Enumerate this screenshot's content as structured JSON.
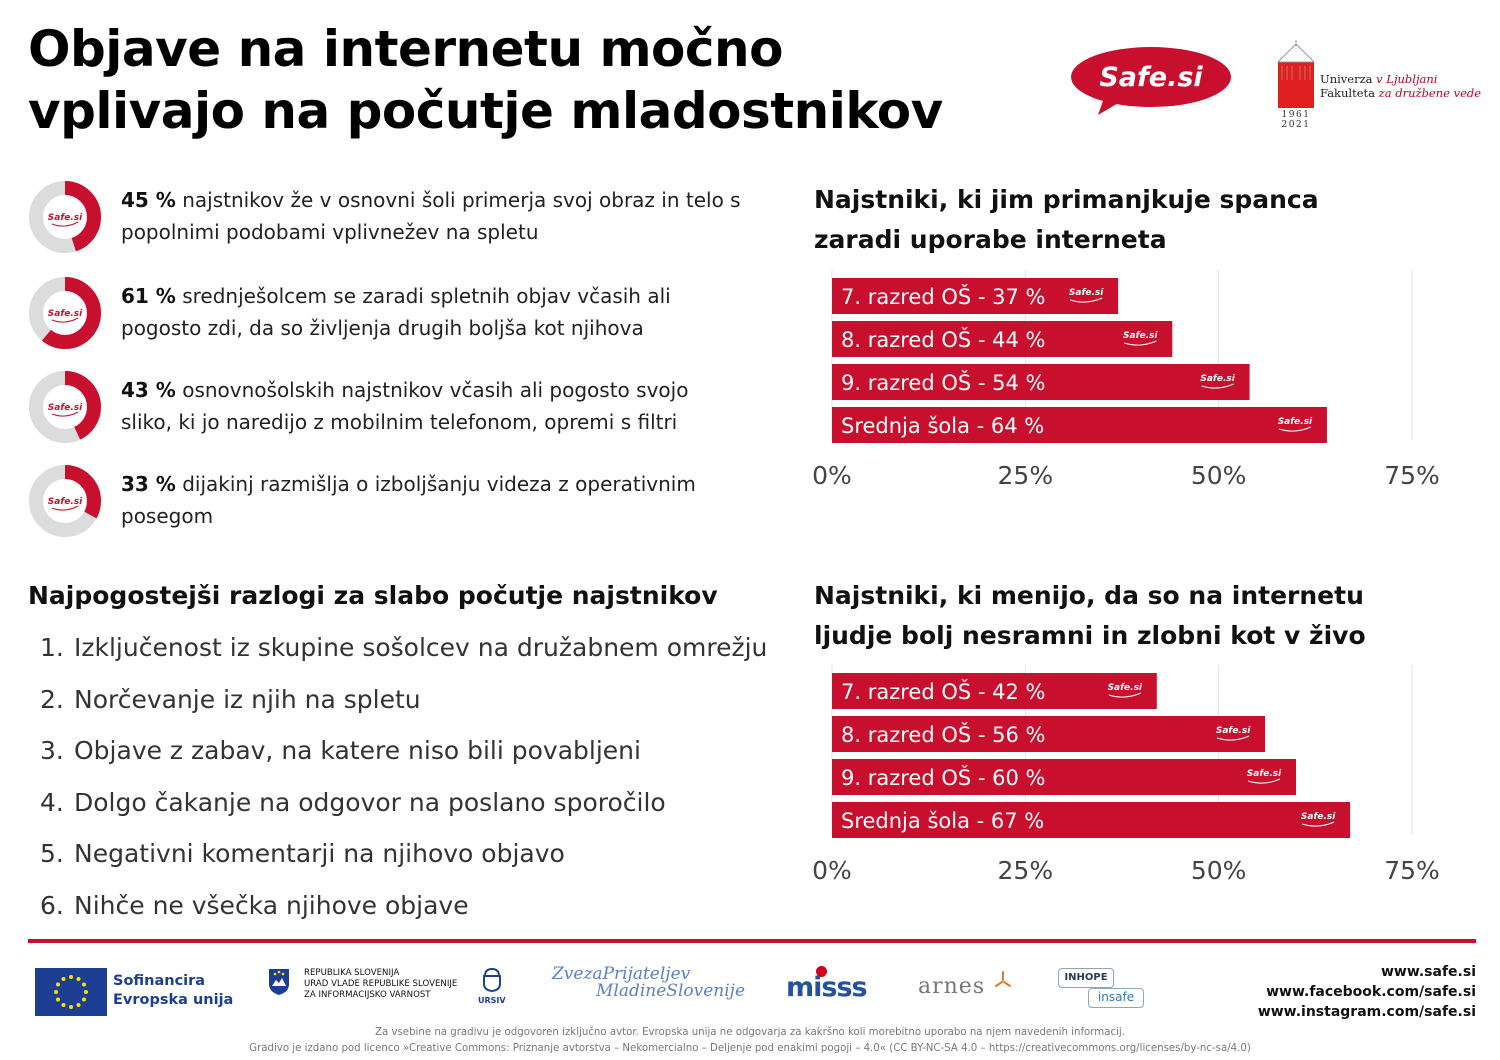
{
  "title": {
    "line1": "Objave na internetu močno",
    "line2": "vplivajo na počutje mladostnikov"
  },
  "logos": {
    "safe": "Safe.si",
    "uni_line1": "Univerza",
    "uni_v": "v Ljubljani",
    "uni_line2": "Fakulteta",
    "uni_faculty": "za družbene vede",
    "uni_years_1": "1961",
    "uni_years_2": "2021"
  },
  "stats": [
    {
      "percent": 45,
      "value": "45 %",
      "text": "najstnikov že v osnovni šoli primerja svoj obraz in telo s popolnimi podobami vplivnežev na spletu",
      "ring_label": "Safe.si"
    },
    {
      "percent": 61,
      "value": "61 %",
      "text": "srednješolcem se zaradi spletnih objav včasih ali pogosto zdi, da so življenja drugih boljša kot njihova",
      "ring_label": "Safe.si"
    },
    {
      "percent": 43,
      "value": "43 %",
      "text": "osnovnošolskih najstnikov včasih ali pogosto svojo sliko, ki jo naredijo z mobilnim telefonom, opremi s filtri",
      "ring_label": "Safe.si"
    },
    {
      "percent": 33,
      "value": "33 %",
      "text": "dijakinj razmišlja o izboljšanju videza z operativnim posegom",
      "ring_label": "Safe.si"
    }
  ],
  "reasons": {
    "heading": "Najpogostejši razlogi za slabo počutje najstnikov",
    "items": [
      {
        "num": "1.",
        "text": "Izključenost iz skupine sošolcev na družabnem omrežju"
      },
      {
        "num": "2.",
        "text": "Norčevanje iz njih na spletu"
      },
      {
        "num": "3.",
        "text": "Objave z zabav, na katere niso bili povabljeni"
      },
      {
        "num": "4.",
        "text": "Dolgo čakanje na odgovor na poslano sporočilo"
      },
      {
        "num": "5.",
        "text": "Negativni komentarji na njihovo objavo"
      },
      {
        "num": "6.",
        "text": "Nihče ne všečka njihove objave"
      }
    ]
  },
  "chart1_heading": {
    "line1": "Najstniki, ki jim primanjkuje spanca",
    "line2": "zaradi uporabe interneta"
  },
  "chart2_heading": {
    "line1": "Najstniki, ki menijo, da so na internetu",
    "line2": "ljudje bolj nesramni in zlobni kot v živo"
  },
  "chart_data": [
    {
      "type": "bar",
      "orientation": "horizontal",
      "title": "Najstniki, ki jim primanjkuje spanca zaradi uporabe interneta",
      "categories": [
        "7. razred OŠ - 37 %",
        "8. razred OŠ - 44 %",
        "9. razred OŠ - 54 %",
        "Srednja šola - 64 %"
      ],
      "values": [
        37,
        44,
        54,
        64
      ],
      "xlim": [
        0,
        75
      ],
      "xticks": [
        "0%",
        "25%",
        "50%",
        "75%"
      ],
      "bar_badge": "Safe.si",
      "grid": true,
      "color": "#c8102e"
    },
    {
      "type": "bar",
      "orientation": "horizontal",
      "title": "Najstniki, ki menijo, da so na internetu ljudje bolj nesramni in zlobni kot v živo",
      "categories": [
        "7. razred OŠ - 42 %",
        "8. razred OŠ - 56 %",
        "9. razred OŠ - 60 %",
        "Srednja šola - 67 %"
      ],
      "values": [
        42,
        56,
        60,
        67
      ],
      "xlim": [
        0,
        75
      ],
      "xticks": [
        "0%",
        "25%",
        "50%",
        "75%"
      ],
      "bar_badge": "Safe.si",
      "grid": true,
      "color": "#c8102e"
    }
  ],
  "footer": {
    "eu_line1": "Sofinancira",
    "eu_line2": "Evropska unija",
    "gov_line1": "REPUBLIKA SLOVENIJA",
    "gov_line2": "URAD VLADE REPUBLIKE SLOVENIJE",
    "gov_line3": "ZA INFORMACIJSKO VARNOST",
    "gov_badge": "URSIV",
    "zpm_line1": "ZvezaPrijateljev",
    "zpm_line2": "MladineSlovenije",
    "misss": "misss",
    "arnes": "arnes",
    "inhope": "INHOPE",
    "insafe": "insafe",
    "links": [
      "www.safe.si",
      "www.facebook.com/safe.si",
      "www.instagram.com/safe.si"
    ],
    "disclaimer1": "Za vsebine na gradivu je odgovoren izključno avtor. Evropska unija ne odgovarja za kakršno koli morebitno uporabo na njem navedenih informacij.",
    "disclaimer2": "Gradivo je izdano pod licenco »Creative Commons: Priznanje avtorstva – Nekomercialno – Deljenje pod enakimi pogoji – 4.0« (CC BY-NC-SA 4.0 – https://creativecommons.org/licenses/by-nc-sa/4.0)"
  },
  "colors": {
    "accent": "#c8102e",
    "ring_track": "#dcdcdc",
    "text": "#222222",
    "grid": "#e2e2e2"
  }
}
